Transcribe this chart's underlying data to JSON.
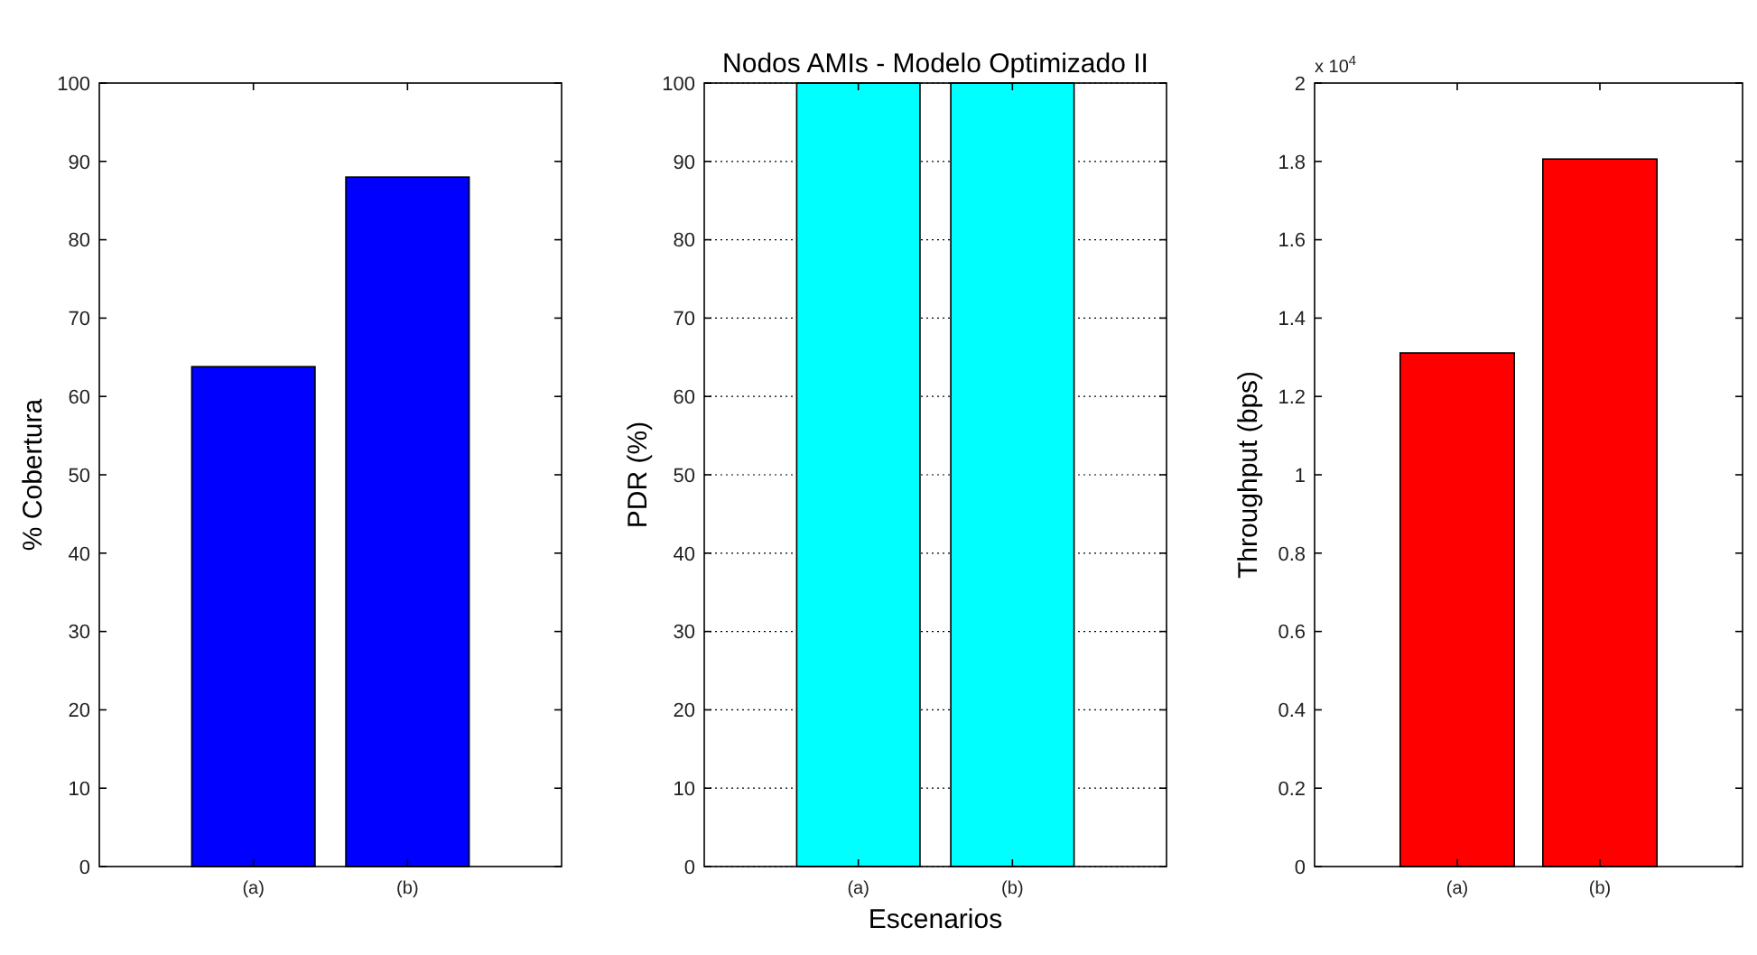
{
  "chart_data": [
    {
      "type": "bar",
      "ylabel": "% Cobertura",
      "categories": [
        "(a)",
        "(b)"
      ],
      "values": [
        63.8,
        88
      ],
      "color": "#0000ff",
      "ylim": [
        0,
        100
      ],
      "yticks": [
        0,
        10,
        20,
        30,
        40,
        50,
        60,
        70,
        80,
        90,
        100
      ],
      "grid": false
    },
    {
      "type": "bar",
      "title": "Nodos AMIs - Modelo Optimizado II",
      "xlabel": "Escenarios",
      "ylabel": "PDR (%)",
      "categories": [
        "(a)",
        "(b)"
      ],
      "values": [
        100,
        100
      ],
      "color": "#00ffff",
      "ylim": [
        0,
        100
      ],
      "yticks": [
        0,
        10,
        20,
        30,
        40,
        50,
        60,
        70,
        80,
        90,
        100
      ],
      "grid": "y"
    },
    {
      "type": "bar",
      "ylabel": "Throughput (bps)",
      "annotations": [
        "x 10$^{4}$"
      ],
      "categories": [
        "(a)",
        "(b)"
      ],
      "values": [
        1.311,
        1.806
      ],
      "color": "#ff0000",
      "ylim": [
        0,
        2
      ],
      "yticks": [
        0,
        0.2,
        0.4,
        0.6,
        0.8,
        1,
        1.2,
        1.4,
        1.6,
        1.8,
        2
      ],
      "grid": false
    }
  ]
}
